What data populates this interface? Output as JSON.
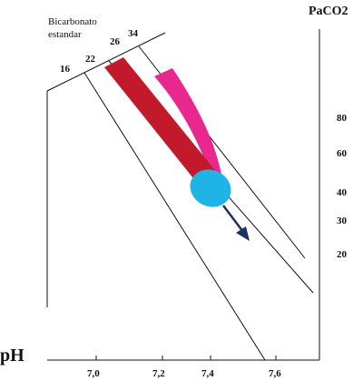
{
  "diagram": {
    "bicarbonate_label_line1": "Bicarbonato",
    "bicarbonate_label_line2": "estandar",
    "bicarbonate_values": [
      "16",
      "22",
      "26",
      "34"
    ],
    "paco2_title": "PaCO2",
    "paco2_values": [
      "80",
      "60",
      "40",
      "30",
      "20"
    ],
    "ph_title": "pH",
    "ph_values": [
      "7,0",
      "7,2",
      "7,4",
      "7,6"
    ],
    "colors": {
      "axis": "#111111",
      "dark_red_band": "#c31a2b",
      "pink_band": "#e8278f",
      "blue_ellipse": "#1eb4e6",
      "arrow": "#1c2f66"
    }
  }
}
